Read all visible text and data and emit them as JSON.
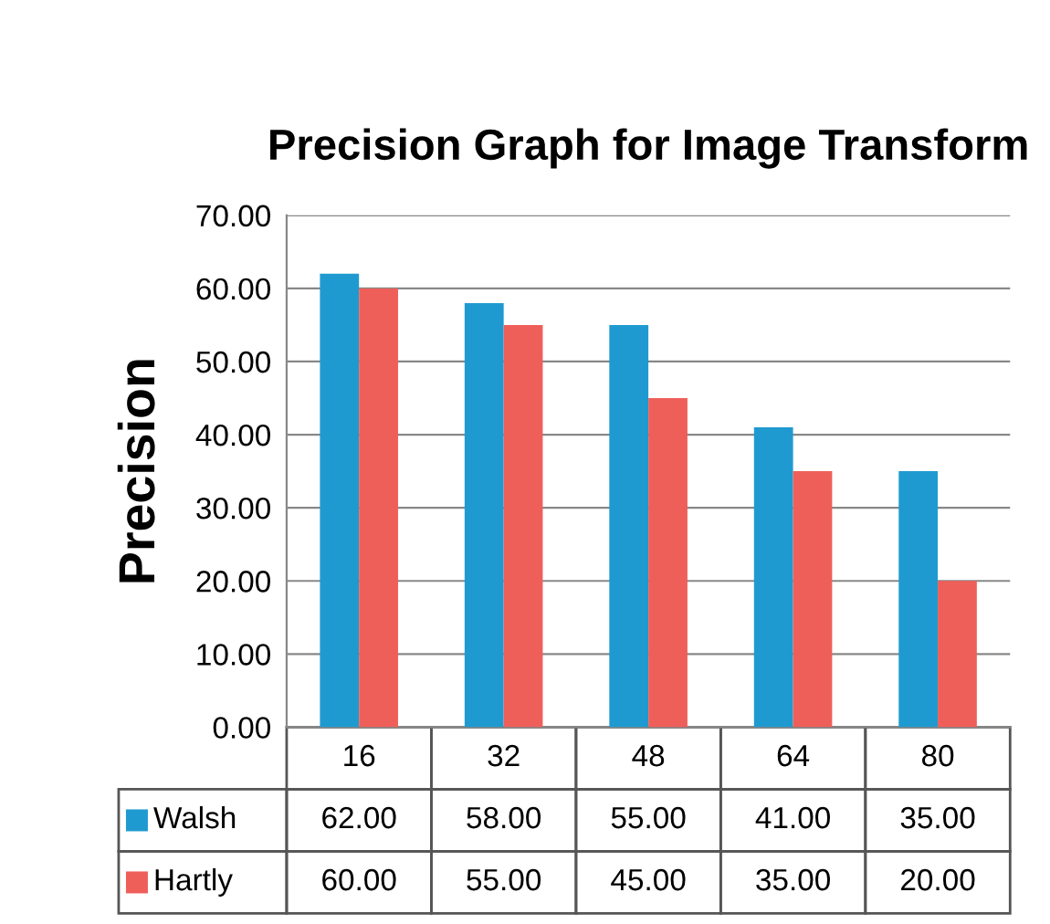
{
  "chart_data": {
    "type": "bar",
    "title": "Precision Graph for Image Transform",
    "ylabel": "Precision",
    "categories": [
      "16",
      "32",
      "48",
      "64",
      "80"
    ],
    "series": [
      {
        "name": "Walsh",
        "color": "#1f9ad0",
        "values": [
          62.0,
          58.0,
          55.0,
          41.0,
          35.0
        ],
        "value_labels": [
          "62.00",
          "58.00",
          "55.00",
          "41.00",
          "35.00"
        ]
      },
      {
        "name": "Hartly",
        "color": "#ef5f5a",
        "values": [
          60.0,
          55.0,
          45.0,
          35.0,
          20.0
        ],
        "value_labels": [
          "60.00",
          "55.00",
          "45.00",
          "35.00",
          "20.00"
        ]
      }
    ],
    "ylim": [
      0,
      70
    ],
    "yticks": [
      {
        "value": 0,
        "label": "0.00"
      },
      {
        "value": 10,
        "label": "10.00"
      },
      {
        "value": 20,
        "label": "20.00"
      },
      {
        "value": 30,
        "label": "30.00"
      },
      {
        "value": 40,
        "label": "40.00"
      },
      {
        "value": 50,
        "label": "50.00"
      },
      {
        "value": 60,
        "label": "60.00"
      },
      {
        "value": 70,
        "label": "70.00"
      }
    ],
    "grid": "y",
    "legend": "bottom"
  }
}
